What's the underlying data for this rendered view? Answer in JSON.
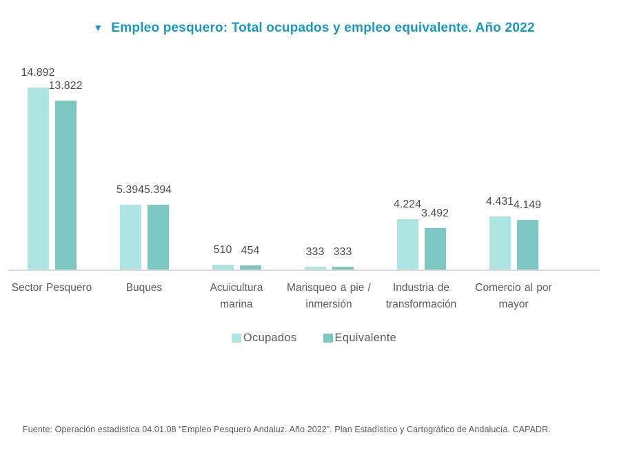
{
  "title": {
    "marker": "▼",
    "text": "Empleo pesquero: Total ocupados y empleo equivalente. Año 2022"
  },
  "colors": {
    "title": "#1799c4",
    "ocupados": "#ace5e2",
    "equivalente": "#7dc7c3",
    "axis_line": "#d9d9d9",
    "data_label": "#4d4d4d",
    "category_label": "#5a5a5a"
  },
  "chart_data": {
    "type": "bar",
    "title": "Empleo pesquero: Total ocupados y empleo equivalente. Año 2022",
    "categories": [
      "Sector Pesquero",
      "Buques",
      "Acuicultura marina",
      "Marisqueo a pie / inmersión",
      "Industria de transformación",
      "Comercio al por mayor"
    ],
    "series": [
      {
        "name": "Ocupados",
        "color": "#ace5e2",
        "values": [
          14892,
          5394,
          510,
          333,
          4224,
          4431
        ],
        "labels": [
          "14.892",
          "5.394",
          "510",
          "333",
          "4.224",
          "4.431"
        ]
      },
      {
        "name": "Equivalente",
        "color": "#7dc7c3",
        "values": [
          13822,
          5394,
          454,
          333,
          3492,
          4149
        ],
        "labels": [
          "13.822",
          "5.394",
          "454",
          "333",
          "3.492",
          "4.149"
        ]
      }
    ],
    "xlabel": "",
    "ylabel": "",
    "ylim": [
      0,
      14892
    ],
    "grid": false,
    "legend_position": "bottom",
    "data_labels": true
  },
  "footer": "Fuente: Operación estadística 04.01.08 “Empleo Pesquero Andaluz. Año 2022”. Plan Estadístico y Cartográfico de Andalucía. CAPADR."
}
